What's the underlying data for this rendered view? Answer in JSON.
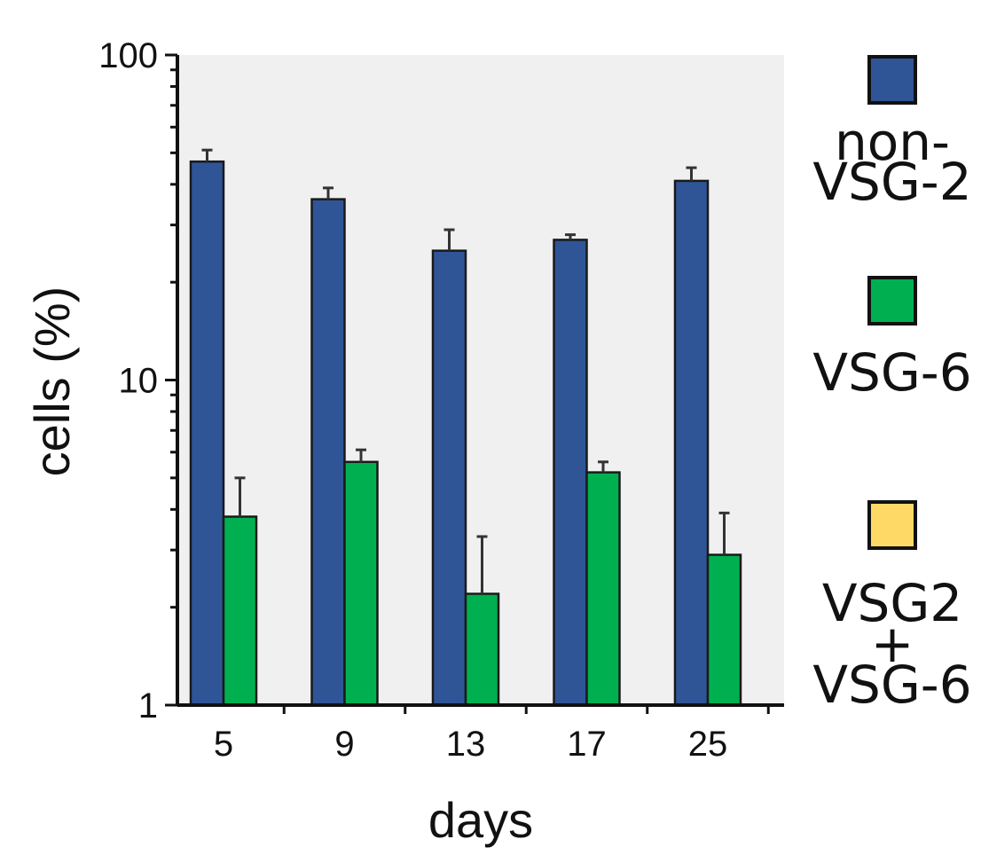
{
  "chart_data": {
    "type": "bar",
    "y_scale": "log",
    "ylim": [
      1,
      100
    ],
    "y_ticks": [
      "1",
      "10",
      "100"
    ],
    "ylabel": "cells (%)",
    "xlabel": "days",
    "categories": [
      "5",
      "9",
      "13",
      "17",
      "25"
    ],
    "series": [
      {
        "legend_lines": [
          "non-",
          "VSG-2"
        ],
        "color": "#2F5597",
        "values": [
          47,
          36,
          25,
          27,
          41
        ],
        "error": [
          4,
          3,
          4,
          1,
          4
        ]
      },
      {
        "legend_lines": [
          "VSG-6"
        ],
        "color": "#00B050",
        "values": [
          3.8,
          5.6,
          2.2,
          5.2,
          2.9
        ],
        "error": [
          1.2,
          0.5,
          1.1,
          0.4,
          1.0
        ]
      },
      {
        "legend_lines": [
          "VSG2",
          "+",
          "VSG-6"
        ],
        "color": "#FFD966",
        "values": [
          null,
          null,
          null,
          null,
          null
        ],
        "error": [
          null,
          null,
          null,
          null,
          null
        ]
      }
    ],
    "legend_position": "right",
    "background_color": "#F0F0F0",
    "grid": false
  }
}
